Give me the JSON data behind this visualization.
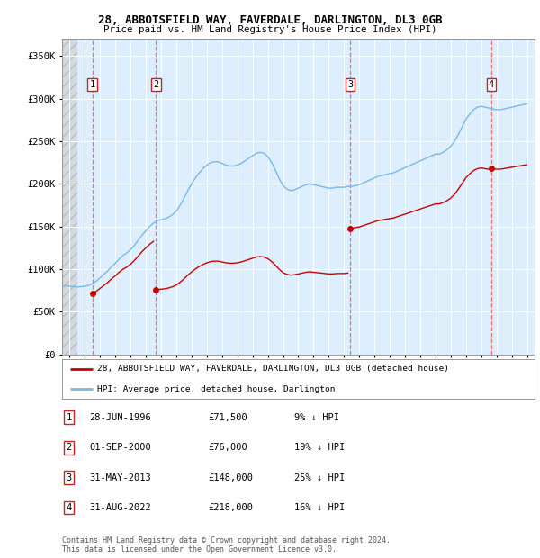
{
  "title1": "28, ABBOTSFIELD WAY, FAVERDALE, DARLINGTON, DL3 0GB",
  "title2": "Price paid vs. HM Land Registry's House Price Index (HPI)",
  "xlim_start": 1994.5,
  "xlim_end": 2025.5,
  "ylim_min": 0,
  "ylim_max": 370000,
  "yticks": [
    0,
    50000,
    100000,
    150000,
    200000,
    250000,
    300000,
    350000
  ],
  "ytick_labels": [
    "£0",
    "£50K",
    "£100K",
    "£150K",
    "£200K",
    "£250K",
    "£300K",
    "£350K"
  ],
  "sale_dates": [
    1996.49,
    2000.67,
    2013.41,
    2022.66
  ],
  "sale_prices": [
    71500,
    76000,
    148000,
    218000
  ],
  "sale_labels": [
    "1",
    "2",
    "3",
    "4"
  ],
  "hpi_color": "#7ab8e8",
  "price_color": "#cc0000",
  "dashed_color": "#ff5555",
  "background_plot": "#ddeeff",
  "legend_line1": "28, ABBOTSFIELD WAY, FAVERDALE, DARLINGTON, DL3 0GB (detached house)",
  "legend_line2": "HPI: Average price, detached house, Darlington",
  "table_entries": [
    [
      "1",
      "28-JUN-1996",
      "£71,500",
      "9% ↓ HPI"
    ],
    [
      "2",
      "01-SEP-2000",
      "£76,000",
      "19% ↓ HPI"
    ],
    [
      "3",
      "31-MAY-2013",
      "£148,000",
      "25% ↓ HPI"
    ],
    [
      "4",
      "31-AUG-2022",
      "£218,000",
      "16% ↓ HPI"
    ]
  ],
  "footnote": "Contains HM Land Registry data © Crown copyright and database right 2024.\nThis data is licensed under the Open Government Licence v3.0.",
  "hpi_data_x": [
    1994.5,
    1994.75,
    1995.0,
    1995.25,
    1995.5,
    1995.75,
    1996.0,
    1996.25,
    1996.5,
    1996.75,
    1997.0,
    1997.25,
    1997.5,
    1997.75,
    1998.0,
    1998.25,
    1998.5,
    1998.75,
    1999.0,
    1999.25,
    1999.5,
    1999.75,
    2000.0,
    2000.25,
    2000.5,
    2000.75,
    2001.0,
    2001.25,
    2001.5,
    2001.75,
    2002.0,
    2002.25,
    2002.5,
    2002.75,
    2003.0,
    2003.25,
    2003.5,
    2003.75,
    2004.0,
    2004.25,
    2004.5,
    2004.75,
    2005.0,
    2005.25,
    2005.5,
    2005.75,
    2006.0,
    2006.25,
    2006.5,
    2006.75,
    2007.0,
    2007.25,
    2007.5,
    2007.75,
    2008.0,
    2008.25,
    2008.5,
    2008.75,
    2009.0,
    2009.25,
    2009.5,
    2009.75,
    2010.0,
    2010.25,
    2010.5,
    2010.75,
    2011.0,
    2011.25,
    2011.5,
    2011.75,
    2012.0,
    2012.25,
    2012.5,
    2012.75,
    2013.0,
    2013.25,
    2013.5,
    2013.75,
    2014.0,
    2014.25,
    2014.5,
    2014.75,
    2015.0,
    2015.25,
    2015.5,
    2015.75,
    2016.0,
    2016.25,
    2016.5,
    2016.75,
    2017.0,
    2017.25,
    2017.5,
    2017.75,
    2018.0,
    2018.25,
    2018.5,
    2018.75,
    2019.0,
    2019.25,
    2019.5,
    2019.75,
    2020.0,
    2020.25,
    2020.5,
    2020.75,
    2021.0,
    2021.25,
    2021.5,
    2021.75,
    2022.0,
    2022.25,
    2022.5,
    2022.75,
    2023.0,
    2023.25,
    2023.5,
    2023.75,
    2024.0,
    2024.25,
    2024.5,
    2024.75,
    2025.0
  ],
  "hpi_data_y": [
    80000,
    80500,
    80000,
    79500,
    79000,
    79500,
    80000,
    81000,
    83000,
    86000,
    90000,
    94000,
    98000,
    103000,
    107000,
    112000,
    116000,
    119000,
    123000,
    128000,
    134000,
    140000,
    145000,
    150000,
    154000,
    157000,
    158000,
    159000,
    161000,
    164000,
    168000,
    175000,
    183000,
    192000,
    200000,
    207000,
    213000,
    218000,
    222000,
    225000,
    226000,
    226000,
    224000,
    222000,
    221000,
    221000,
    222000,
    224000,
    227000,
    230000,
    233000,
    236000,
    237000,
    236000,
    232000,
    225000,
    216000,
    206000,
    198000,
    194000,
    192000,
    193000,
    195000,
    197000,
    199000,
    200000,
    199000,
    198000,
    197000,
    196000,
    195000,
    195000,
    196000,
    196000,
    196000,
    197000,
    197000,
    198000,
    199000,
    201000,
    203000,
    205000,
    207000,
    209000,
    210000,
    211000,
    212000,
    213000,
    215000,
    217000,
    219000,
    221000,
    223000,
    225000,
    227000,
    229000,
    231000,
    233000,
    235000,
    235000,
    237000,
    240000,
    244000,
    250000,
    258000,
    267000,
    276000,
    282000,
    287000,
    290000,
    291000,
    290000,
    289000,
    288000,
    287000,
    287000,
    288000,
    289000,
    290000,
    291000,
    292000,
    293000,
    294000
  ]
}
